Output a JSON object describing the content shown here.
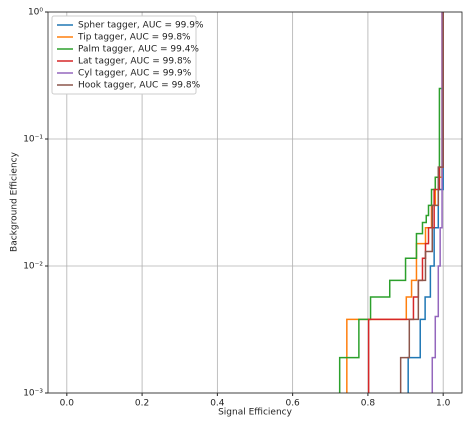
{
  "chart_data": {
    "type": "step",
    "xlabel": "Signal Efficiency",
    "ylabel": "Background Efficiency",
    "xlim": [
      -0.05,
      1.05
    ],
    "ylim": [
      0.001,
      1
    ],
    "ylog": true,
    "grid": true,
    "legend": "upper left",
    "xticks": [
      {
        "value": 0,
        "label": "0.0"
      },
      0.2,
      0.4,
      0.6,
      0.8,
      {
        "value": 1,
        "label": "1.0"
      }
    ],
    "yticks": [
      {
        "value": 0.001,
        "label": "10⁻³"
      },
      {
        "value": 0.01,
        "label": "10⁻²"
      },
      {
        "value": 0.1,
        "label": "10⁻¹"
      },
      {
        "value": 1,
        "label": "10⁰"
      }
    ],
    "series": [
      {
        "name": "Spher tagger, AUC = 99.9%",
        "color": "#1f77b4",
        "x": [
          0.907,
          0.907,
          0.939,
          0.952,
          0.966,
          0.976,
          0.987,
          1.0
        ],
        "values": [
          0.001,
          0.0019,
          0.0038,
          0.0057,
          0.01,
          0.02,
          0.04,
          1
        ]
      },
      {
        "name": "Tip tagger, AUC = 99.8%",
        "color": "#ff7f0e",
        "x": [
          0.744,
          0.744,
          0.902,
          0.916,
          0.929,
          0.953,
          0.969,
          0.979,
          0.997
        ],
        "values": [
          0.001,
          0.0038,
          0.0057,
          0.0077,
          0.015,
          0.02,
          0.03,
          0.05,
          1
        ]
      },
      {
        "name": "Palm tagger, AUC = 99.4%",
        "color": "#2ca02c",
        "x": [
          0.725,
          0.725,
          0.776,
          0.807,
          0.858,
          0.9,
          0.929,
          0.945,
          0.955,
          0.961,
          0.969,
          0.979,
          0.99,
          1.0
        ],
        "values": [
          0.001,
          0.0019,
          0.0038,
          0.0057,
          0.0077,
          0.0115,
          0.018,
          0.022,
          0.025,
          0.03,
          0.04,
          0.05,
          0.25,
          1
        ]
      },
      {
        "name": "Lat tagger, AUC = 99.8%",
        "color": "#d62728",
        "x": [
          0.802,
          0.802,
          0.921,
          0.934,
          0.945,
          0.953,
          0.961,
          0.976,
          0.99,
          1.0
        ],
        "values": [
          0.001,
          0.0038,
          0.0057,
          0.0077,
          0.0115,
          0.015,
          0.02,
          0.04,
          0.06,
          1
        ]
      },
      {
        "name": "Cyl tagger, AUC = 99.9%",
        "color": "#9467bd",
        "x": [
          0.971,
          0.971,
          0.979,
          0.987,
          0.992,
          0.997
        ],
        "values": [
          0.001,
          0.0019,
          0.004,
          0.01,
          0.02,
          1
        ]
      },
      {
        "name": "Hook tagger, AUC = 99.8%",
        "color": "#8c564b",
        "x": [
          0.887,
          0.887,
          0.91,
          0.934,
          0.953,
          0.971,
          0.987,
          1.0
        ],
        "values": [
          0.001,
          0.0019,
          0.0038,
          0.0077,
          0.013,
          0.03,
          0.06,
          1
        ]
      }
    ]
  }
}
